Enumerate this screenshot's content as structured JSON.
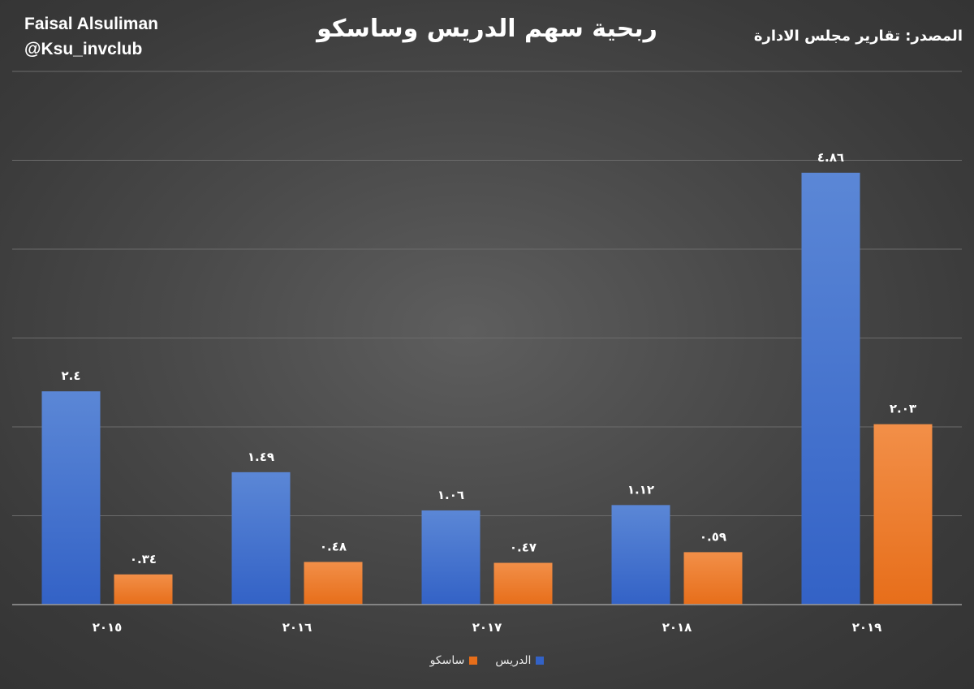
{
  "header": {
    "author_name": "Faisal Alsuliman",
    "author_handle": "@Ksu_invclub",
    "source": "المصدر: تقارير مجلس الادارة"
  },
  "colors": {
    "aldrees_top": "#5b87d6",
    "aldrees_bottom": "#3362c6",
    "sasco_top": "#f28f48",
    "sasco_bottom": "#e76e1a",
    "grid": "#6b6b6b",
    "axis": "#9a9a9a"
  },
  "chart_data": {
    "type": "bar",
    "title": "ربحية سهم الدريس وساسكو",
    "categories": [
      "٢٠١٥",
      "٢٠١٦",
      "٢٠١٧",
      "٢٠١٨",
      "٢٠١٩"
    ],
    "series": [
      {
        "name": "الدريس",
        "values": [
          2.4,
          1.49,
          1.06,
          1.12,
          4.86
        ],
        "labels": [
          "٢.٤",
          "١.٤٩",
          "١.٠٦",
          "١.١٢",
          "٤.٨٦"
        ]
      },
      {
        "name": "ساسكو",
        "values": [
          0.34,
          0.48,
          0.47,
          0.59,
          2.03
        ],
        "labels": [
          "٠.٣٤",
          "٠.٤٨",
          "٠.٤٧",
          "٠.٥٩",
          "٢.٠٣"
        ]
      }
    ],
    "ylim": [
      0,
      6
    ],
    "grid": true,
    "legend_position": "bottom-center"
  }
}
